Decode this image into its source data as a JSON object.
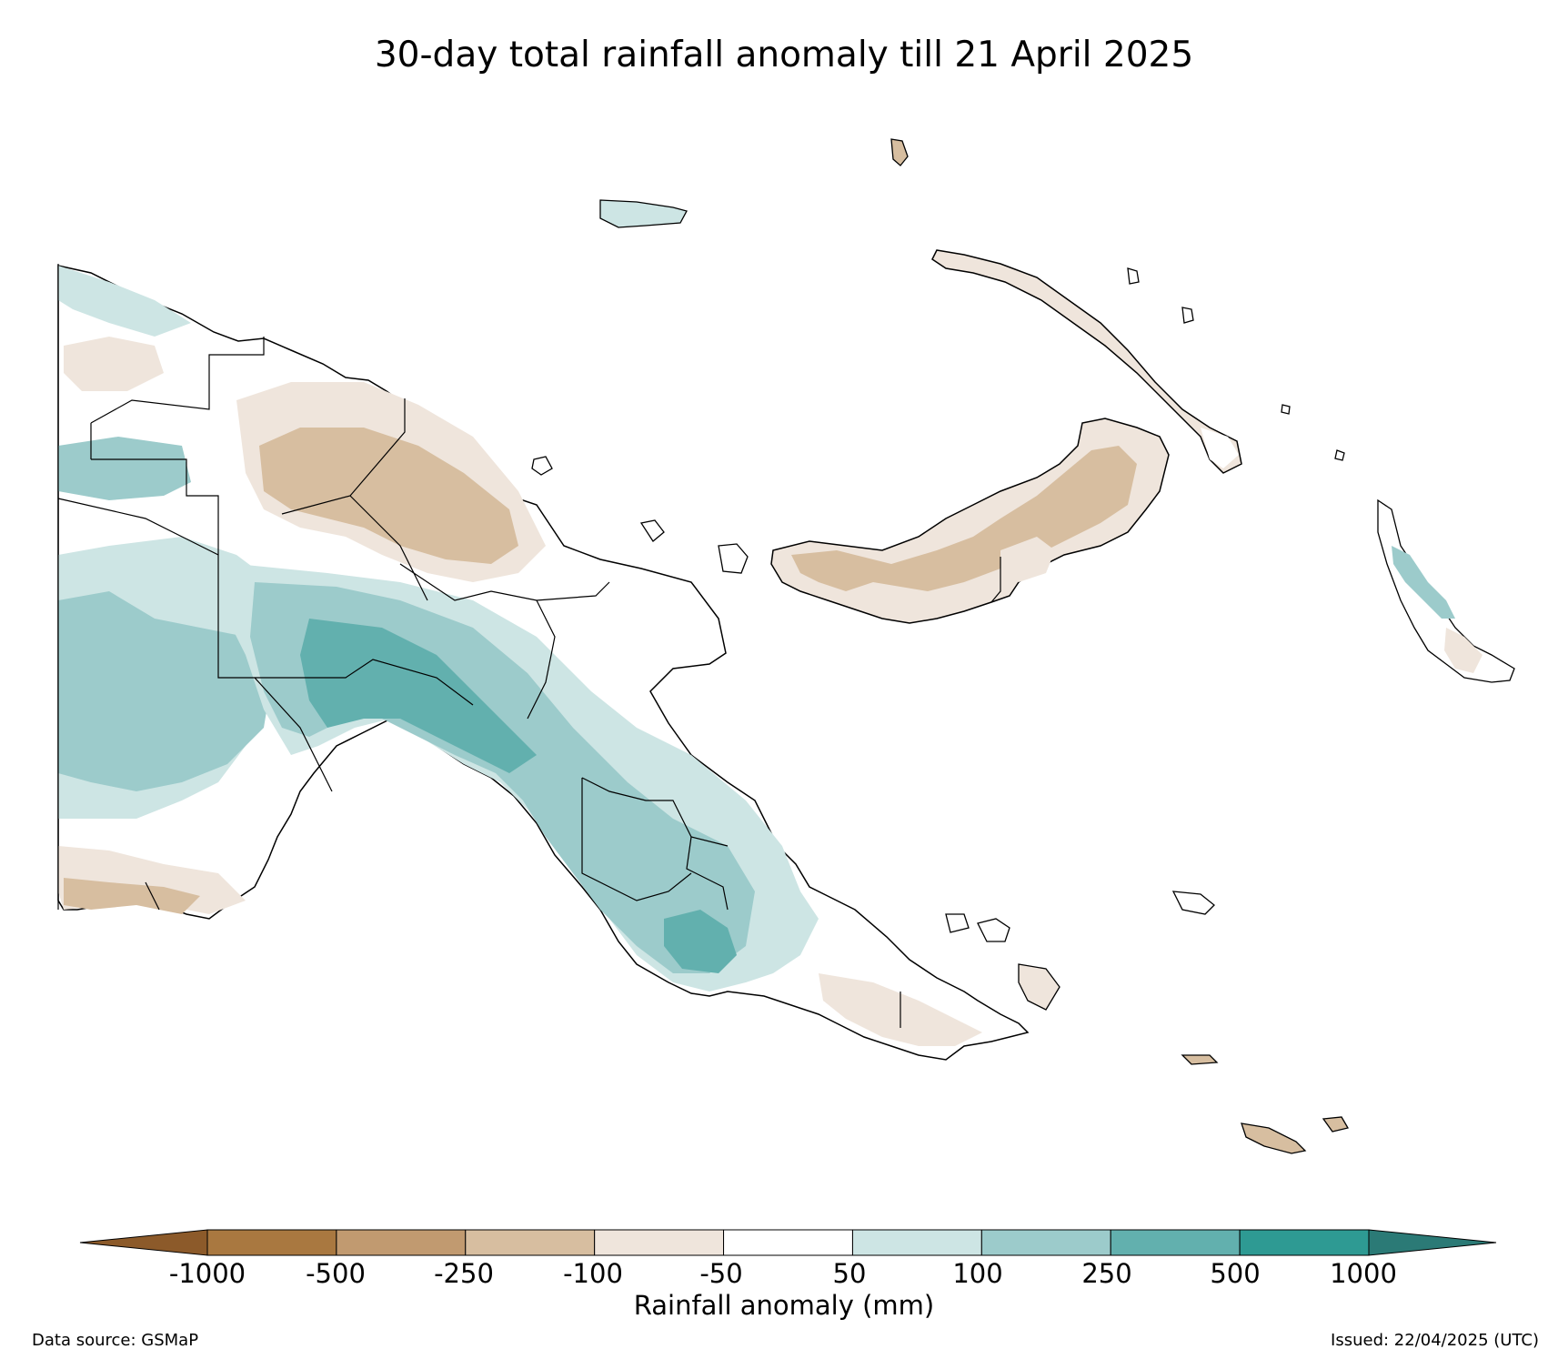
{
  "title": "30-day total rainfall anomaly till 21 April 2025",
  "colorbar": {
    "label": "Rainfall anomaly (mm)",
    "ticks": [
      "-1000",
      "-500",
      "-250",
      "-100",
      "-50",
      "50",
      "100",
      "250",
      "500",
      "1000"
    ],
    "extend_low_color": "#8c5a2a",
    "extend_high_color": "#2b7a76",
    "bin_colors": [
      "#a97840",
      "#c19a70",
      "#d7bea0",
      "#efe5dc",
      "#ffffff",
      "#cde5e4",
      "#9ccbcb",
      "#62b0ae",
      "#2e9a93"
    ]
  },
  "colors": {
    "coast": "#000000",
    "dry_strong": "#d7bea0",
    "dry_light": "#efe5dc",
    "wet_light": "#cde5e4",
    "wet_mid": "#9ccbcb",
    "wet_strong": "#62b0ae"
  },
  "footer": {
    "source": "Data source: GSMaP",
    "issued": "Issued: 22/04/2025 (UTC)"
  }
}
